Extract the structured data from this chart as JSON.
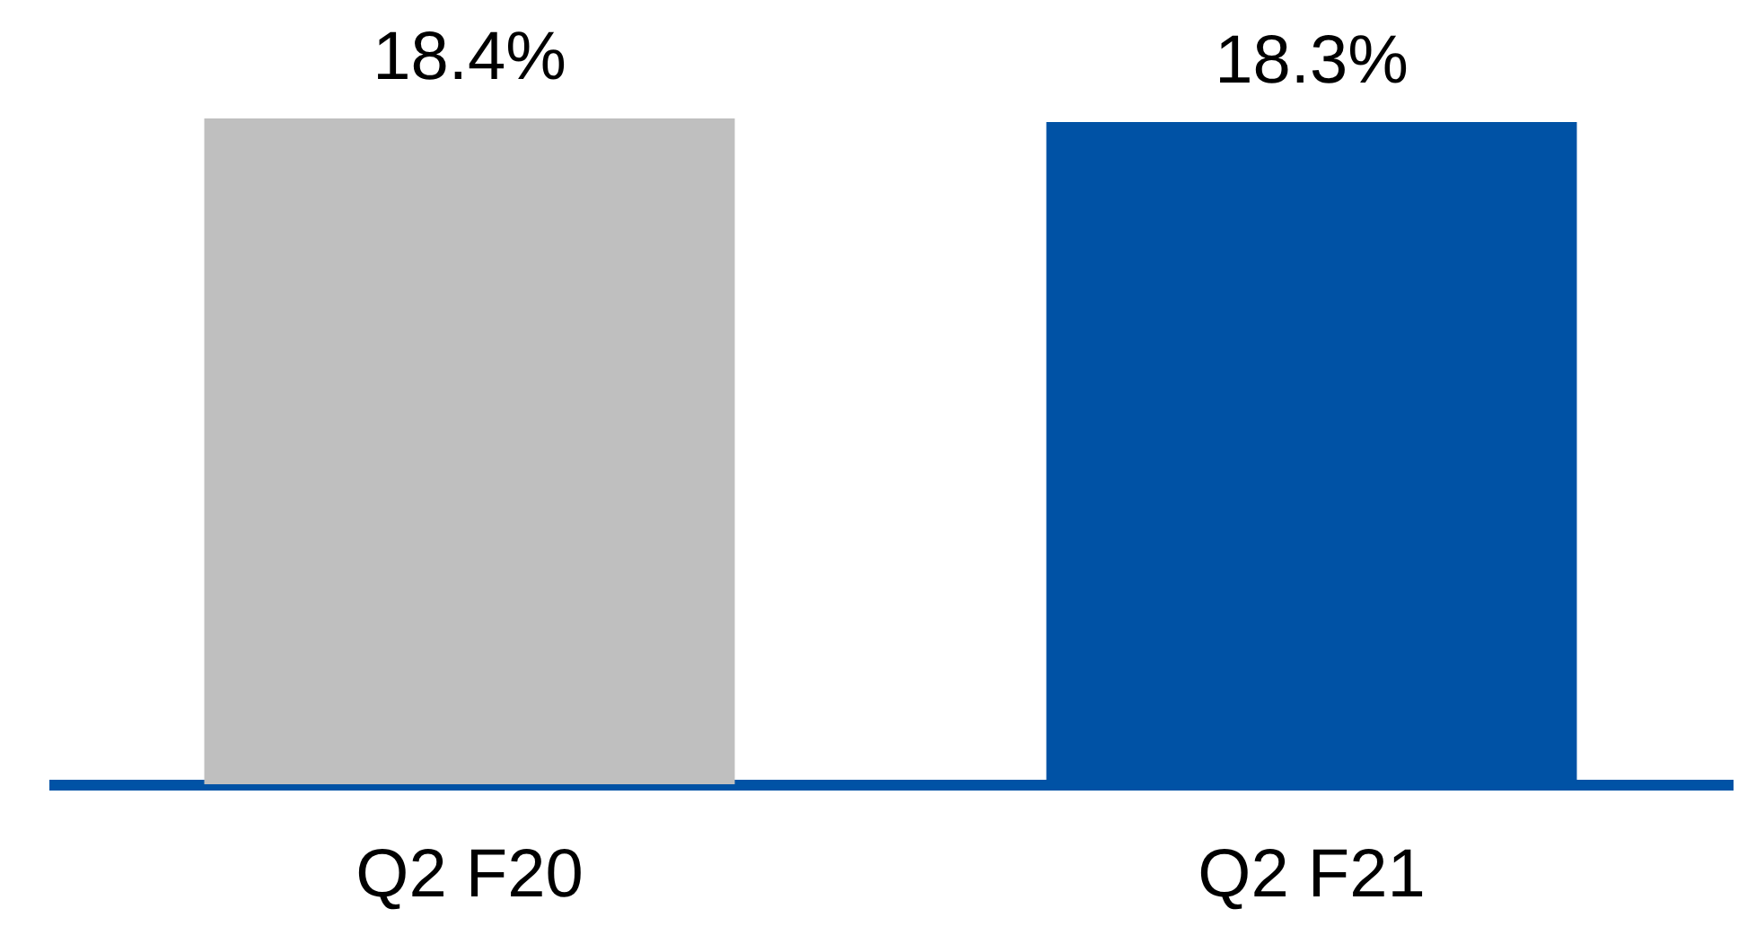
{
  "chart_data": {
    "type": "bar",
    "categories": [
      "Q2 F20",
      "Q2 F21"
    ],
    "values": [
      18.4,
      18.3
    ],
    "value_labels": [
      "18.4%",
      "18.3%"
    ],
    "colors": [
      "#bfbfbf",
      "#0052a5"
    ],
    "grid": false
  }
}
